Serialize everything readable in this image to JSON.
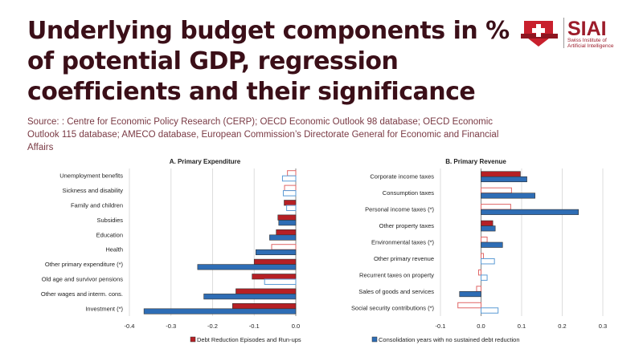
{
  "title": "Underlying budget components in % of potential GDP, regression coefficients and their significance",
  "source": "Source: : Centre for Economic Policy Research (CERP); OECD Economic Outlook 98 database; OECD Economic Outlook 115 database; AMECO database, European Commission’s Directorate General for Economic and Financial Affairs",
  "logo": {
    "name": "SIAI",
    "sub1": "Swiss Institute of",
    "sub2": "Artificial Intelligence"
  },
  "colors": {
    "red": "#b52025",
    "blue": "#2e6db5",
    "hollow_red": "#e06666",
    "hollow_blue": "#5b9bd5",
    "title": "#3b0f18"
  },
  "chart_data": [
    {
      "type": "bar",
      "orientation": "horizontal",
      "title": "A. Primary Expenditure",
      "categories": [
        "Unemployment benefits",
        "Sickness and disability",
        "Family and children",
        "Subsidies",
        "Education",
        "Health",
        "Other primary expenditure (*)",
        "Old age and survivor pensions",
        "Other wages and interm. cons.",
        "Investment (*)"
      ],
      "series": [
        {
          "name": "Debt Reduction Episodes and Run-ups",
          "values": [
            -0.02,
            -0.027,
            -0.028,
            -0.043,
            -0.047,
            -0.058,
            -0.1,
            -0.105,
            -0.144,
            -0.152
          ],
          "significant": [
            false,
            false,
            true,
            true,
            true,
            false,
            true,
            true,
            true,
            true
          ]
        },
        {
          "name": "Consolidation years with no sustained debt reduction",
          "values": [
            -0.032,
            -0.03,
            -0.022,
            -0.041,
            -0.063,
            -0.096,
            -0.236,
            -0.075,
            -0.221,
            -0.365
          ],
          "significant": [
            false,
            false,
            false,
            true,
            true,
            true,
            true,
            false,
            true,
            true
          ]
        }
      ],
      "xlim": [
        -0.4,
        0.0
      ],
      "xticks": [
        "-0.4",
        "-0.3",
        "-0.2",
        "-0.1",
        "0.0"
      ],
      "legend": "Debt Reduction Episodes and Run-ups"
    },
    {
      "type": "bar",
      "orientation": "horizontal",
      "title": "B. Primary Revenue",
      "categories": [
        "Corporate income taxes",
        "Consumption taxes",
        "Personal income taxes (*)",
        "Other property taxes",
        "Environmental taxes (*)",
        "Other primary revenue",
        "Recurrent taxes on property",
        "Sales of goods and services",
        "Social security contributions (*)"
      ],
      "series": [
        {
          "name": "Debt Reduction Episodes and Run-ups",
          "values": [
            0.097,
            0.075,
            0.073,
            0.029,
            0.015,
            0.006,
            -0.006,
            -0.011,
            -0.057
          ],
          "significant": [
            true,
            false,
            false,
            true,
            false,
            false,
            false,
            false,
            false
          ]
        },
        {
          "name": "Consolidation years with no sustained debt reduction",
          "values": [
            0.113,
            0.133,
            0.24,
            0.035,
            0.053,
            0.033,
            0.015,
            -0.053,
            0.042
          ],
          "significant": [
            true,
            true,
            true,
            true,
            true,
            false,
            false,
            true,
            false
          ]
        }
      ],
      "xlim": [
        -0.1,
        0.3
      ],
      "xticks": [
        "-0.1",
        "0.0",
        "0.1",
        "0.2",
        "0.3"
      ],
      "legend": "Consolidation years with no sustained debt reduction"
    }
  ]
}
